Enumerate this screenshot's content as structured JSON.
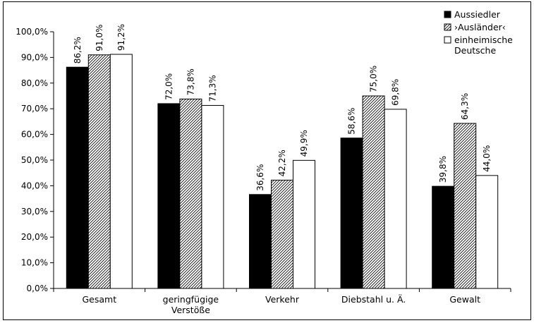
{
  "chart_data": {
    "type": "bar",
    "categories": [
      [
        "Gesamt"
      ],
      [
        "geringfügige",
        "Verstöße"
      ],
      [
        "Verkehr"
      ],
      [
        "Diebstahl u. Ä."
      ],
      [
        "Gewalt"
      ]
    ],
    "series": [
      {
        "name": "Aussiedler",
        "fill": "#000000",
        "values": [
          86.2,
          72.0,
          36.6,
          58.6,
          39.8
        ],
        "labels": [
          "86,2%",
          "72,0%",
          "36,6%",
          "58,6%",
          "39,8%"
        ]
      },
      {
        "name": "›Ausländer‹",
        "fill": "hatch",
        "values": [
          91.0,
          73.8,
          42.2,
          75.0,
          64.3
        ],
        "labels": [
          "91,0%",
          "73,8%",
          "42,2%",
          "75,0%",
          "64,3%"
        ]
      },
      {
        "name": [
          "einheimische",
          "Deutsche"
        ],
        "fill": "#ffffff",
        "values": [
          91.2,
          71.3,
          49.9,
          69.8,
          44.0
        ],
        "labels": [
          "91,2%",
          "71,3%",
          "49,9%",
          "69,8%",
          "44,0%"
        ]
      }
    ],
    "yticks": [
      0,
      10,
      20,
      30,
      40,
      50,
      60,
      70,
      80,
      90,
      100
    ],
    "ytick_labels": [
      "0,0%",
      "10,0%",
      "20,0%",
      "30,0%",
      "40,0%",
      "50,0%",
      "60,0%",
      "70,0%",
      "80,0%",
      "90,0%",
      "100,0%"
    ],
    "ylim": [
      0,
      100
    ],
    "title": "",
    "xlabel": "",
    "ylabel": "",
    "grid": false,
    "legend_position": "top-right"
  }
}
